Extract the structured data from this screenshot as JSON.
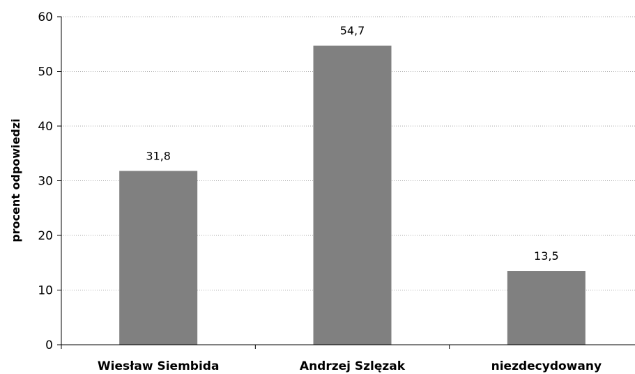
{
  "chart_data": {
    "type": "bar",
    "categories": [
      "Wiesław Siembida",
      "Andrzej Szlęzak",
      "niezdecydowany"
    ],
    "values": [
      31.8,
      54.7,
      13.5
    ],
    "data_labels": [
      "31,8",
      "54,7",
      "13,5"
    ],
    "title": "",
    "xlabel": "",
    "ylabel": "procent odpowiedzi",
    "ylim": [
      0,
      60
    ],
    "yticks": [
      0,
      10,
      20,
      30,
      40,
      50,
      60
    ],
    "grid": true,
    "legend": "none",
    "bar_color": "#808080"
  }
}
